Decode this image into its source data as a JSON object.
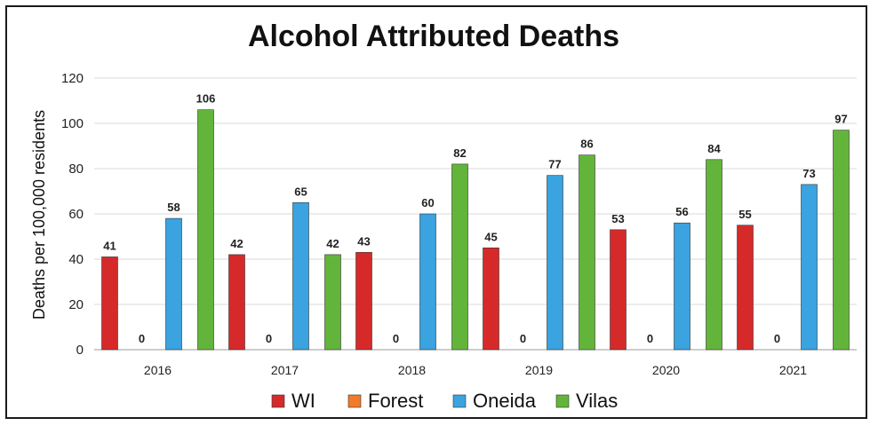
{
  "chart_data": {
    "type": "bar",
    "title": "Alcohol Attributed Deaths",
    "xlabel": "",
    "ylabel": "Deaths per 100,000 residents",
    "ylim": [
      0,
      120
    ],
    "yticks": [
      0,
      20,
      40,
      60,
      80,
      100,
      120
    ],
    "grid": true,
    "legend_position": "bottom",
    "categories": [
      "2016",
      "2017",
      "2018",
      "2019",
      "2020",
      "2021"
    ],
    "series": [
      {
        "name": "WI",
        "color": "#d62a2a",
        "values": [
          41,
          42,
          43,
          45,
          53,
          55
        ]
      },
      {
        "name": "Forest",
        "color": "#f07b2a",
        "values": [
          0,
          0,
          0,
          0,
          0,
          0
        ]
      },
      {
        "name": "Oneida",
        "color": "#3aa3e0",
        "values": [
          58,
          65,
          60,
          77,
          56,
          73
        ]
      },
      {
        "name": "Vilas",
        "color": "#62b53a",
        "values": [
          106,
          42,
          82,
          86,
          84,
          97
        ]
      }
    ]
  }
}
